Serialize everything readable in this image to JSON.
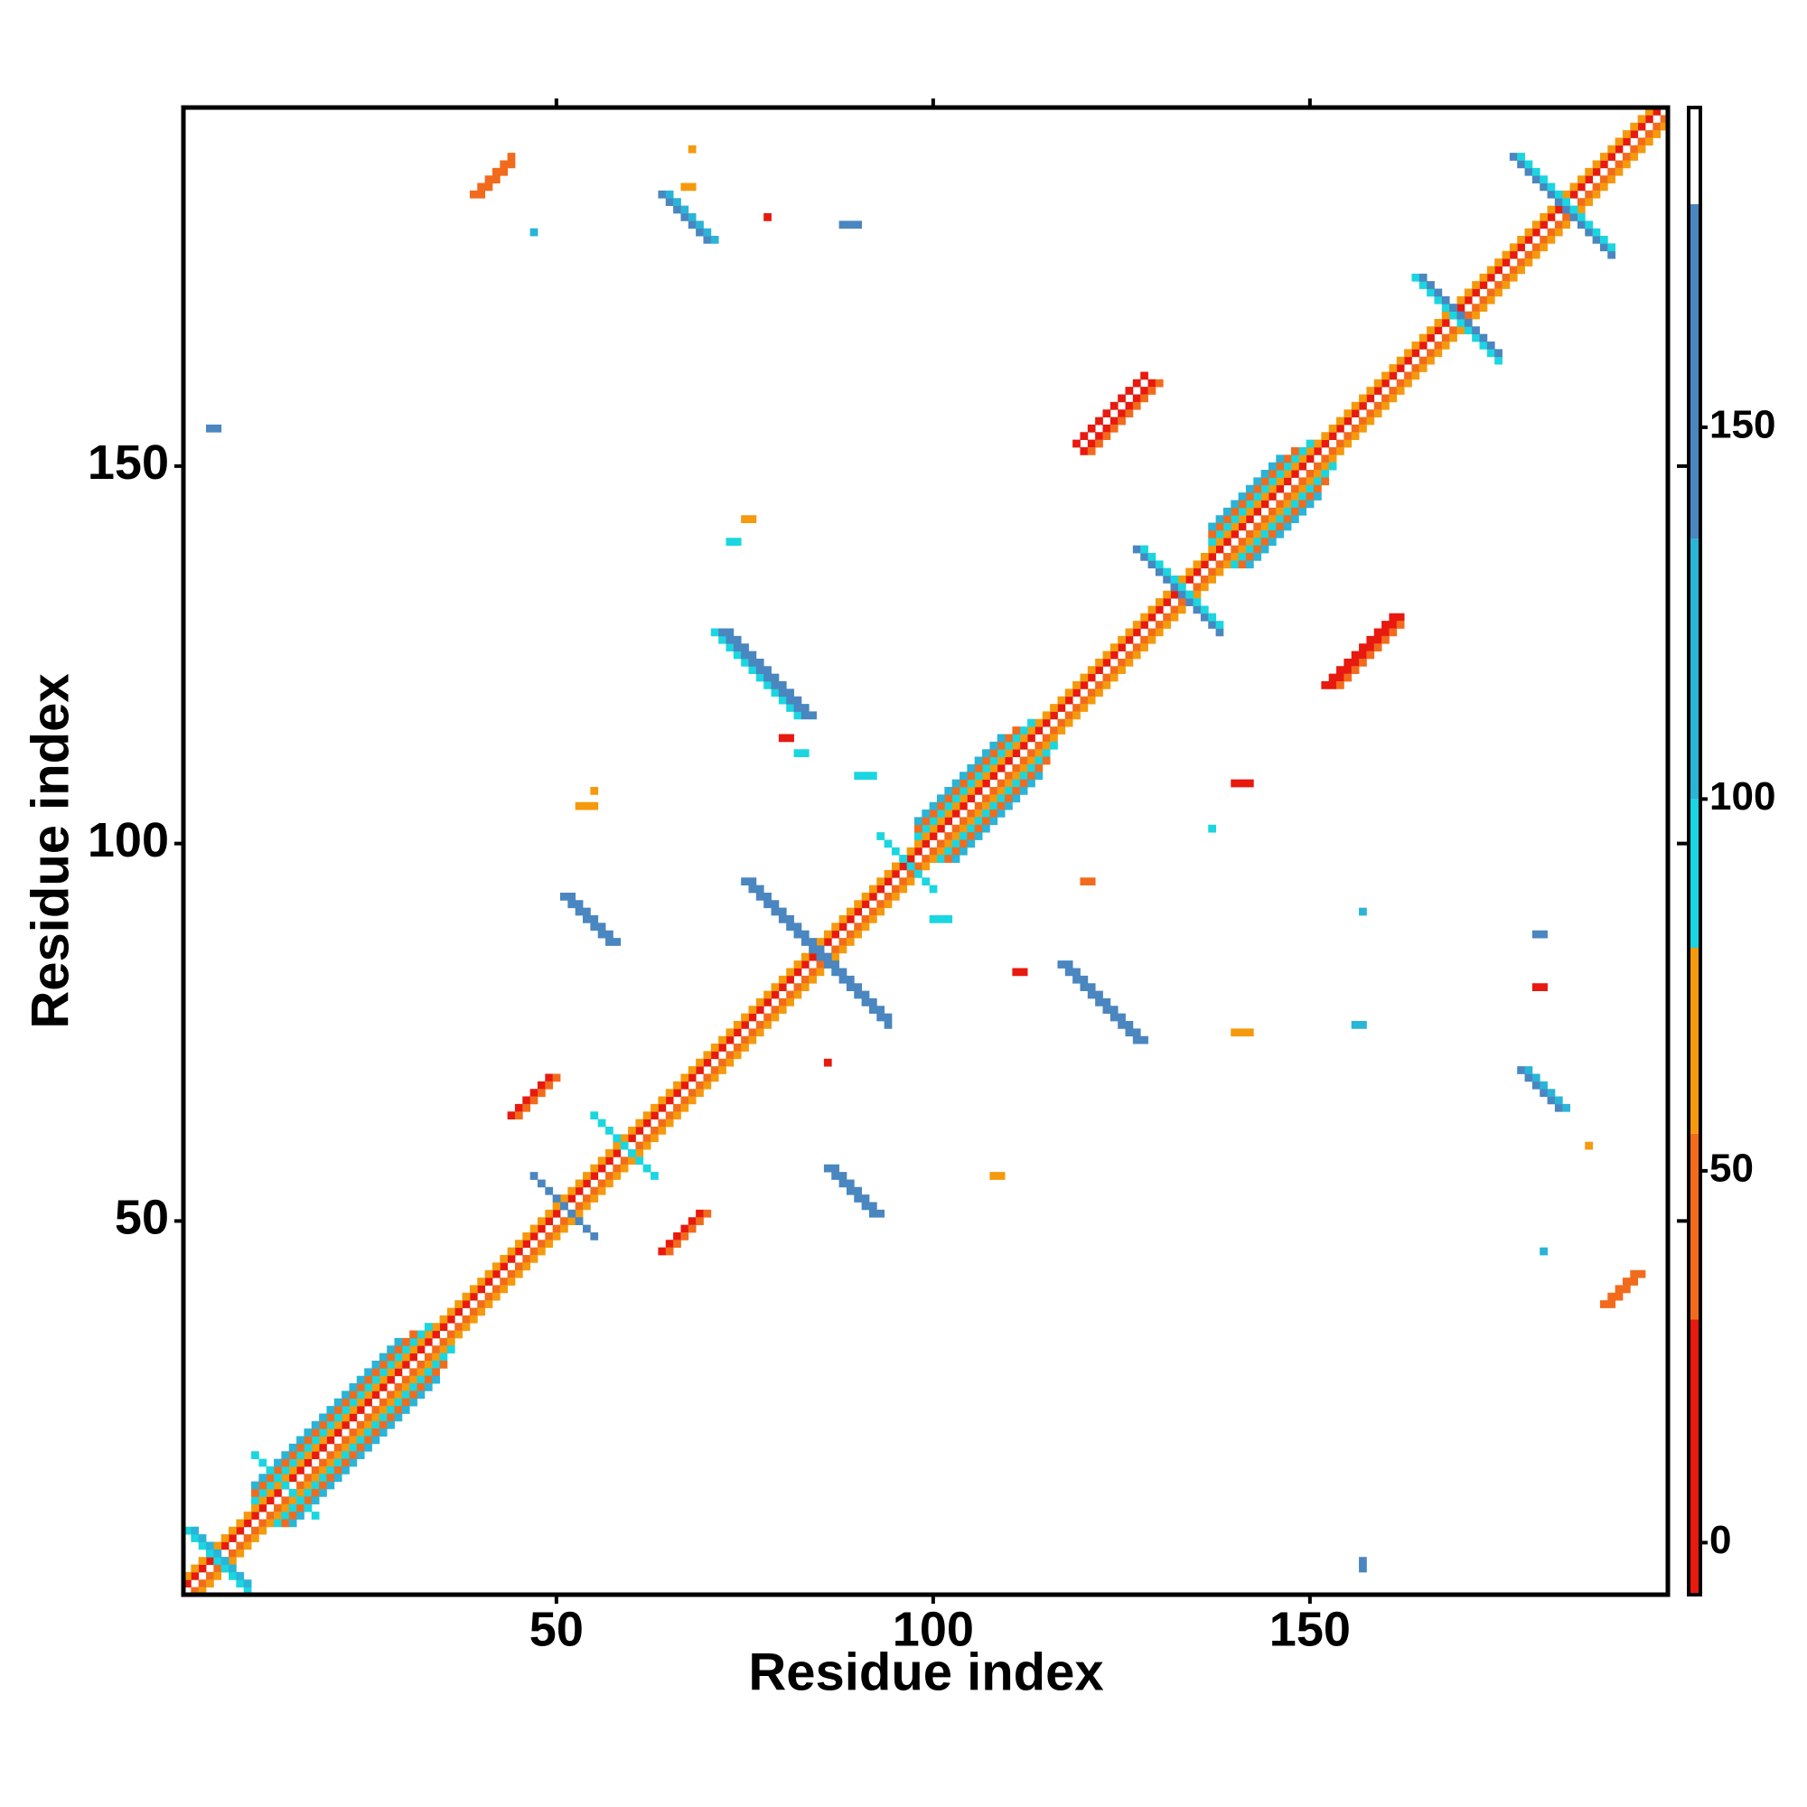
{
  "chart_data": {
    "type": "heatmap",
    "xlabel": "Residue index",
    "ylabel": "Residue index",
    "xlim": [
      0.5,
      197.5
    ],
    "ylim": [
      0.5,
      197.5
    ],
    "xticks": [
      50,
      100,
      150
    ],
    "yticks": [
      50,
      100,
      150
    ],
    "colorbar": {
      "lim": [
        -7,
        193
      ],
      "ticks": [
        0,
        50,
        100,
        150
      ],
      "breaks": [
        -7,
        30,
        55,
        80,
        100,
        135,
        180,
        193
      ],
      "colors": [
        "#e8190f",
        "#f26b1d",
        "#f59a0c",
        "#1ad6e0",
        "#2ab4d8",
        "#4a86c0",
        "#ffffff"
      ]
    },
    "runs": [
      [
        1,
        2,
        1,
        1,
        196,
        10
      ],
      [
        2,
        1,
        1,
        1,
        196,
        40
      ],
      [
        1,
        3,
        1,
        1,
        195,
        65
      ],
      [
        3,
        1,
        1,
        1,
        195,
        65
      ],
      [
        10,
        13,
        1,
        1,
        24,
        90
      ],
      [
        13,
        10,
        1,
        1,
        24,
        90
      ],
      [
        10,
        14,
        1,
        1,
        22,
        40
      ],
      [
        14,
        10,
        1,
        1,
        22,
        40
      ],
      [
        10,
        15,
        1,
        1,
        20,
        120
      ],
      [
        15,
        10,
        1,
        1,
        20,
        120
      ],
      [
        98,
        101,
        1,
        1,
        16,
        90
      ],
      [
        101,
        98,
        1,
        1,
        16,
        90
      ],
      [
        98,
        102,
        1,
        1,
        14,
        40
      ],
      [
        102,
        98,
        1,
        1,
        14,
        40
      ],
      [
        98,
        103,
        1,
        1,
        12,
        120
      ],
      [
        103,
        98,
        1,
        1,
        12,
        120
      ],
      [
        137,
        140,
        1,
        1,
        14,
        90
      ],
      [
        140,
        137,
        1,
        1,
        14,
        90
      ],
      [
        137,
        141,
        1,
        1,
        12,
        40
      ],
      [
        141,
        137,
        1,
        1,
        12,
        40
      ],
      [
        137,
        142,
        1,
        1,
        10,
        120
      ],
      [
        142,
        137,
        1,
        1,
        10,
        120
      ],
      [
        1,
        9,
        1,
        -1,
        9,
        90
      ],
      [
        2,
        9,
        1,
        -1,
        8,
        120
      ],
      [
        10,
        19,
        1,
        -1,
        9,
        90
      ],
      [
        55,
        64,
        1,
        -1,
        9,
        90
      ],
      [
        47,
        56,
        1,
        -1,
        9,
        160
      ],
      [
        75,
        95,
        1,
        -1,
        20,
        160
      ],
      [
        76,
        95,
        1,
        -1,
        19,
        160
      ],
      [
        93,
        101,
        1,
        -1,
        8,
        90
      ],
      [
        127,
        139,
        1,
        -1,
        12,
        160
      ],
      [
        128,
        139,
        1,
        -1,
        11,
        90
      ],
      [
        164,
        175,
        1,
        -1,
        12,
        90
      ],
      [
        165,
        175,
        1,
        -1,
        11,
        160
      ],
      [
        177,
        191,
        1,
        -1,
        14,
        160
      ],
      [
        178,
        191,
        1,
        -1,
        13,
        90
      ],
      [
        39,
        186,
        1,
        1,
        6,
        40
      ],
      [
        40,
        186,
        1,
        1,
        5,
        40
      ],
      [
        64,
        186,
        1,
        -1,
        7,
        160
      ],
      [
        65,
        186,
        1,
        -1,
        7,
        120
      ],
      [
        71,
        128,
        1,
        -1,
        12,
        90
      ],
      [
        72,
        128,
        1,
        -1,
        12,
        160
      ],
      [
        73,
        128,
        1,
        -1,
        12,
        160
      ],
      [
        51,
        93,
        1,
        -1,
        7,
        160
      ],
      [
        52,
        93,
        1,
        -1,
        7,
        160
      ],
      [
        44,
        64,
        1,
        1,
        6,
        10
      ],
      [
        45,
        64,
        1,
        1,
        6,
        40
      ],
      [
        64,
        46,
        1,
        1,
        6,
        10
      ],
      [
        65,
        46,
        1,
        1,
        6,
        40
      ],
      [
        86,
        57,
        1,
        -1,
        7,
        160
      ],
      [
        87,
        57,
        1,
        -1,
        7,
        160
      ],
      [
        117,
        84,
        1,
        -1,
        11,
        160
      ],
      [
        118,
        84,
        1,
        -1,
        11,
        160
      ],
      [
        119,
        153,
        1,
        1,
        10,
        10
      ],
      [
        120,
        152,
        1,
        1,
        10,
        10
      ],
      [
        121,
        152,
        1,
        1,
        10,
        40
      ],
      [
        152,
        121,
        1,
        1,
        10,
        10
      ],
      [
        153,
        121,
        1,
        1,
        10,
        10
      ],
      [
        154,
        121,
        1,
        1,
        9,
        40
      ],
      [
        178,
        70,
        1,
        -1,
        6,
        160
      ],
      [
        179,
        70,
        1,
        -1,
        6,
        120
      ],
      [
        189,
        39,
        1,
        1,
        5,
        40
      ],
      [
        190,
        39,
        1,
        1,
        5,
        40
      ],
      [
        4,
        155,
        1,
        0,
        2,
        160
      ],
      [
        47,
        181,
        1,
        0,
        1,
        120
      ],
      [
        68,
        192,
        1,
        0,
        1,
        65
      ],
      [
        67,
        187,
        1,
        0,
        2,
        65
      ],
      [
        78,
        183,
        1,
        0,
        1,
        10
      ],
      [
        88,
        182,
        1,
        0,
        3,
        160
      ],
      [
        75,
        143,
        1,
        0,
        2,
        65
      ],
      [
        73,
        140,
        1,
        0,
        2,
        90
      ],
      [
        80,
        114,
        1,
        0,
        2,
        10
      ],
      [
        82,
        112,
        1,
        0,
        2,
        90
      ],
      [
        90,
        109,
        1,
        0,
        3,
        90
      ],
      [
        55,
        107,
        1,
        0,
        1,
        65
      ],
      [
        53,
        105,
        1,
        0,
        3,
        65
      ],
      [
        86,
        71,
        1,
        0,
        1,
        10
      ],
      [
        108,
        56,
        1,
        0,
        2,
        65
      ],
      [
        120,
        95,
        1,
        0,
        2,
        40
      ],
      [
        140,
        108,
        1,
        0,
        3,
        10
      ],
      [
        137,
        102,
        1,
        0,
        1,
        90
      ],
      [
        180,
        88,
        1,
        0,
        2,
        160
      ],
      [
        187,
        60,
        1,
        0,
        1,
        65
      ],
      [
        157,
        91,
        1,
        0,
        1,
        120
      ],
      [
        156,
        76,
        1,
        0,
        2,
        120
      ],
      [
        180,
        81,
        1,
        0,
        2,
        10
      ],
      [
        157,
        4,
        0,
        1,
        2,
        160
      ],
      [
        181,
        46,
        1,
        0,
        1,
        120
      ],
      [
        140,
        75,
        1,
        0,
        3,
        65
      ],
      [
        100,
        90,
        1,
        0,
        3,
        90
      ],
      [
        111,
        83,
        1,
        0,
        2,
        10
      ]
    ]
  }
}
